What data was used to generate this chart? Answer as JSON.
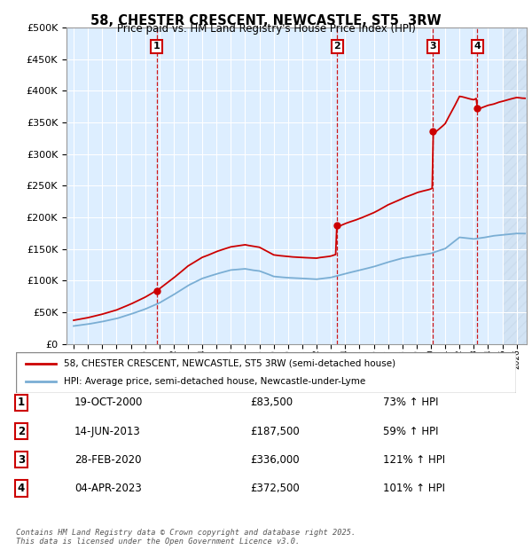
{
  "title": "58, CHESTER CRESCENT, NEWCASTLE, ST5  3RW",
  "subtitle": "Price paid vs. HM Land Registry's House Price Index (HPI)",
  "bg_color": "#ddeeff",
  "grid_color": "#ffffff",
  "red_color": "#cc0000",
  "blue_color": "#7aaed4",
  "hatch_color": "#bbccdd",
  "yticks": [
    0,
    50000,
    100000,
    150000,
    200000,
    250000,
    300000,
    350000,
    400000,
    450000,
    500000
  ],
  "ylabels": [
    "£0",
    "£50K",
    "£100K",
    "£150K",
    "£200K",
    "£250K",
    "£300K",
    "£350K",
    "£400K",
    "£450K",
    "£500K"
  ],
  "xmin": 1994.5,
  "xmax": 2026.7,
  "ymin": 0,
  "ymax": 500000,
  "hatch_start": 2025.0,
  "transactions": [
    {
      "label": "1",
      "date": "19-OCT-2000",
      "year": 2000.8,
      "price": 83500,
      "pct": "73% ↑ HPI"
    },
    {
      "label": "2",
      "date": "14-JUN-2013",
      "year": 2013.45,
      "price": 187500,
      "pct": "59% ↑ HPI"
    },
    {
      "label": "3",
      "date": "28-FEB-2020",
      "year": 2020.15,
      "price": 336000,
      "pct": "121% ↑ HPI"
    },
    {
      "label": "4",
      "date": "04-APR-2023",
      "year": 2023.25,
      "price": 372500,
      "pct": "101% ↑ HPI"
    }
  ],
  "legend_entries": [
    "58, CHESTER CRESCENT, NEWCASTLE, ST5 3RW (semi-detached house)",
    "HPI: Average price, semi-detached house, Newcastle-under-Lyme"
  ],
  "footer": "Contains HM Land Registry data © Crown copyright and database right 2025.\nThis data is licensed under the Open Government Licence v3.0."
}
